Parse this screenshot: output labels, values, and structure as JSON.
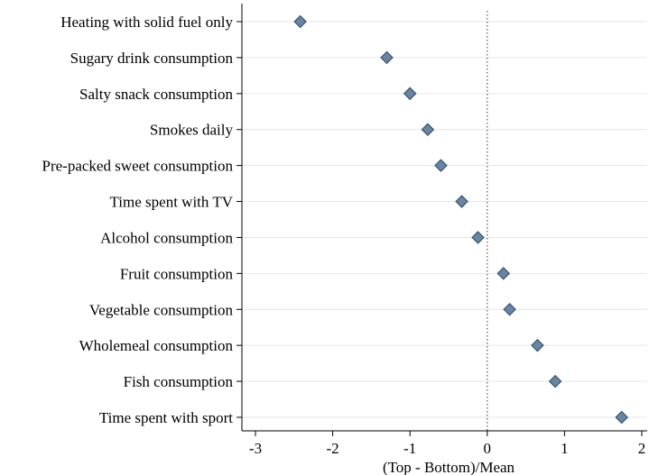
{
  "chart_data": {
    "type": "scatter",
    "orientation": "horizontal",
    "marker": "diamond",
    "marker_color": "#6b84a0",
    "marker_edge_color": "#2f4f6f",
    "grid": true,
    "grid_color": "#e6e6e6",
    "reference_line": {
      "x": 0,
      "style": "dotted"
    },
    "xlabel": "(Top - Bottom)/Mean",
    "ylabel": "",
    "xlim": [
      -3,
      2
    ],
    "xticks": [
      -3,
      -2,
      -1,
      0,
      1,
      2
    ],
    "xtick_labels": [
      "-3",
      "-2",
      "-1",
      "0",
      "1",
      "2"
    ],
    "categories": [
      "Heating with solid fuel only",
      "Sugary drink consumption",
      "Salty snack consumption",
      "Smokes daily",
      "Pre-packed sweet consumption",
      "Time spent with TV",
      "Alcohol consumption",
      "Fruit consumption",
      "Vegetable consumption",
      "Wholemeal consumption",
      "Fish consumption",
      "Time spent with sport"
    ],
    "values": [
      -2.42,
      -1.3,
      -1.0,
      -0.77,
      -0.6,
      -0.33,
      -0.12,
      0.21,
      0.29,
      0.65,
      0.88,
      1.74
    ]
  }
}
